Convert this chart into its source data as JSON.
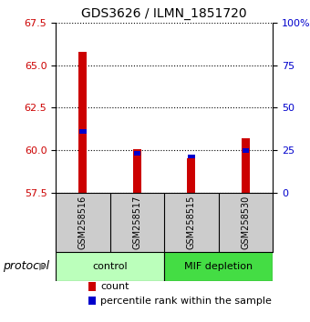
{
  "title": "GDS3626 / ILMN_1851720",
  "samples": [
    "GSM258516",
    "GSM258517",
    "GSM258515",
    "GSM258530"
  ],
  "red_values": [
    65.8,
    60.05,
    59.55,
    60.7
  ],
  "blue_values": [
    61.1,
    59.82,
    59.65,
    60.0
  ],
  "ylim_left": [
    57.5,
    67.5
  ],
  "ylim_right": [
    0,
    100
  ],
  "yticks_left": [
    57.5,
    60.0,
    62.5,
    65.0,
    67.5
  ],
  "yticks_right": [
    0,
    25,
    50,
    75,
    100
  ],
  "ytick_right_labels": [
    "0",
    "25",
    "50",
    "75",
    "100%"
  ],
  "groups": [
    {
      "label": "control",
      "samples": [
        0,
        1
      ],
      "color": "#bbffbb"
    },
    {
      "label": "MIF depletion",
      "samples": [
        2,
        3
      ],
      "color": "#44dd44"
    }
  ],
  "red_color": "#cc0000",
  "blue_color": "#0000cc",
  "protocol_label": "protocol",
  "legend_items": [
    {
      "color": "#cc0000",
      "label": "count"
    },
    {
      "color": "#0000cc",
      "label": "percentile rank within the sample"
    }
  ],
  "bg_color": "#ffffff",
  "tick_color_left": "#cc0000",
  "tick_color_right": "#0000cc",
  "label_bg": "#cccccc",
  "red_bar_width": 0.15,
  "blue_bar_width": 0.12,
  "blue_bar_height": 0.25
}
